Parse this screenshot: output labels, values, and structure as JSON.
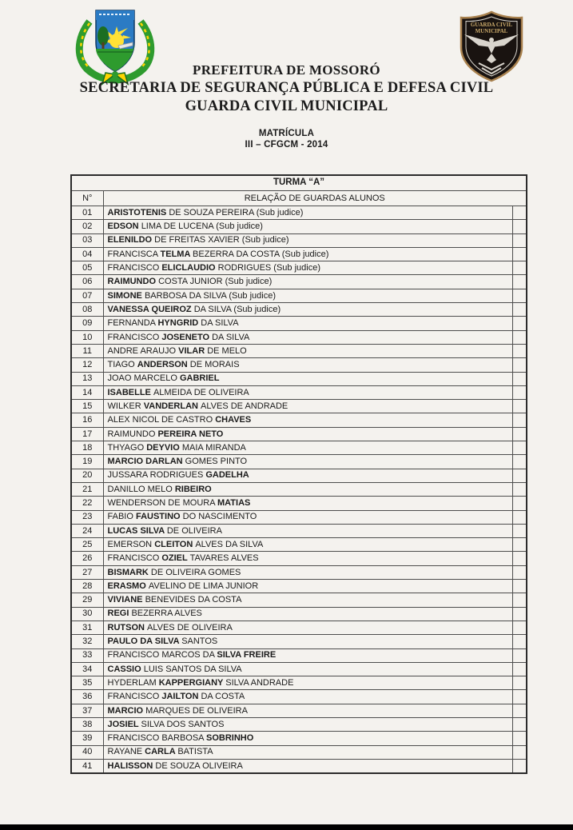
{
  "header": {
    "title_lines": [
      "PREFEITURA DE MOSSORÓ",
      "SECRETARIA DE SEGURANÇA PÚBLICA E DEFESA CIVIL",
      "GUARDA CIVIL MUNICIPAL"
    ],
    "subtitle_lines": [
      "MATRÍCULA",
      "III – CFGCM - 2014"
    ],
    "left_logo": "mossoro-coat-of-arms",
    "right_logo": "guarda-civil-municipal-badge",
    "right_logo_text": [
      "GUARDA  CIVIL",
      "MUNICIPAL"
    ]
  },
  "table": {
    "title": "TURMA “A”",
    "col_number_header": "N°",
    "col_names_header": "RELAÇÃO DE GUARDAS ALUNOS",
    "rows": [
      {
        "num": "01",
        "segments": [
          {
            "text": "ARISTOTENIS ",
            "bold": true
          },
          {
            "text": "DE SOUZA PEREIRA (Sub judice)",
            "bold": false
          }
        ]
      },
      {
        "num": "02",
        "segments": [
          {
            "text": "EDSON ",
            "bold": true
          },
          {
            "text": "LIMA DE LUCENA (Sub judice)",
            "bold": false
          }
        ]
      },
      {
        "num": "03",
        "segments": [
          {
            "text": "ELENILDO ",
            "bold": true
          },
          {
            "text": "DE FREITAS XAVIER (Sub judice)",
            "bold": false
          }
        ]
      },
      {
        "num": "04",
        "segments": [
          {
            "text": "FRANCISCA ",
            "bold": false
          },
          {
            "text": "TELMA ",
            "bold": true
          },
          {
            "text": "BEZERRA DA COSTA (Sub judice)",
            "bold": false
          }
        ]
      },
      {
        "num": "05",
        "segments": [
          {
            "text": "FRANCISCO ",
            "bold": false
          },
          {
            "text": "ELICLAUDIO ",
            "bold": true
          },
          {
            "text": "RODRIGUES (Sub judice)",
            "bold": false
          }
        ]
      },
      {
        "num": "06",
        "segments": [
          {
            "text": "RAIMUNDO ",
            "bold": true
          },
          {
            "text": "COSTA JUNIOR (Sub judice)",
            "bold": false
          }
        ]
      },
      {
        "num": "07",
        "segments": [
          {
            "text": "SIMONE ",
            "bold": true
          },
          {
            "text": "BARBOSA DA SILVA (Sub judice)",
            "bold": false
          }
        ]
      },
      {
        "num": "08",
        "segments": [
          {
            "text": "VANESSA QUEIROZ ",
            "bold": true
          },
          {
            "text": "DA SILVA (Sub judice)",
            "bold": false
          }
        ]
      },
      {
        "num": "09",
        "segments": [
          {
            "text": "FERNANDA ",
            "bold": false
          },
          {
            "text": "HYNGRID ",
            "bold": true
          },
          {
            "text": "DA SILVA",
            "bold": false
          }
        ]
      },
      {
        "num": "10",
        "segments": [
          {
            "text": "FRANCISCO ",
            "bold": false
          },
          {
            "text": "JOSENETO ",
            "bold": true
          },
          {
            "text": "DA SILVA",
            "bold": false
          }
        ]
      },
      {
        "num": "11",
        "segments": [
          {
            "text": "ANDRE ARAUJO ",
            "bold": false
          },
          {
            "text": "VILAR ",
            "bold": true
          },
          {
            "text": "DE MELO",
            "bold": false
          }
        ]
      },
      {
        "num": "12",
        "segments": [
          {
            "text": "TIAGO ",
            "bold": false
          },
          {
            "text": "ANDERSON ",
            "bold": true
          },
          {
            "text": "DE MORAIS",
            "bold": false
          }
        ]
      },
      {
        "num": "13",
        "segments": [
          {
            "text": "JOAO MARCELO ",
            "bold": false
          },
          {
            "text": "GABRIEL",
            "bold": true
          }
        ]
      },
      {
        "num": "14",
        "segments": [
          {
            "text": "ISABELLE ",
            "bold": true
          },
          {
            "text": "ALMEIDA DE OLIVEIRA",
            "bold": false
          }
        ]
      },
      {
        "num": "15",
        "segments": [
          {
            "text": "WILKER ",
            "bold": false
          },
          {
            "text": "VANDERLAN ",
            "bold": true
          },
          {
            "text": "ALVES DE ANDRADE",
            "bold": false
          }
        ]
      },
      {
        "num": "16",
        "segments": [
          {
            "text": "ALEX NICOL DE CASTRO ",
            "bold": false
          },
          {
            "text": "CHAVES",
            "bold": true
          }
        ]
      },
      {
        "num": "17",
        "segments": [
          {
            "text": "RAIMUNDO ",
            "bold": false
          },
          {
            "text": "PEREIRA NETO",
            "bold": true
          }
        ]
      },
      {
        "num": "18",
        "segments": [
          {
            "text": "THYAGO ",
            "bold": false
          },
          {
            "text": "DEYVIO ",
            "bold": true
          },
          {
            "text": "MAIA MIRANDA",
            "bold": false
          }
        ]
      },
      {
        "num": "19",
        "segments": [
          {
            "text": "MARCIO DARLAN ",
            "bold": true
          },
          {
            "text": "GOMES PINTO",
            "bold": false
          }
        ]
      },
      {
        "num": "20",
        "segments": [
          {
            "text": "JUSSARA RODRIGUES ",
            "bold": false
          },
          {
            "text": "GADELHA",
            "bold": true
          }
        ]
      },
      {
        "num": "21",
        "segments": [
          {
            "text": "DANILLO MELO ",
            "bold": false
          },
          {
            "text": "RIBEIRO",
            "bold": true
          }
        ]
      },
      {
        "num": "22",
        "segments": [
          {
            "text": "WENDERSON DE MOURA ",
            "bold": false
          },
          {
            "text": "MATIAS",
            "bold": true
          }
        ]
      },
      {
        "num": "23",
        "segments": [
          {
            "text": "FABIO ",
            "bold": false
          },
          {
            "text": "FAUSTINO ",
            "bold": true
          },
          {
            "text": "DO NASCIMENTO",
            "bold": false
          }
        ]
      },
      {
        "num": "24",
        "segments": [
          {
            "text": "LUCAS SILVA ",
            "bold": true
          },
          {
            "text": "DE OLIVEIRA",
            "bold": false
          }
        ]
      },
      {
        "num": "25",
        "segments": [
          {
            "text": "EMERSON ",
            "bold": false
          },
          {
            "text": "CLEITON ",
            "bold": true
          },
          {
            "text": "ALVES DA SILVA",
            "bold": false
          }
        ]
      },
      {
        "num": "26",
        "segments": [
          {
            "text": "FRANCISCO ",
            "bold": false
          },
          {
            "text": "OZIEL ",
            "bold": true
          },
          {
            "text": "TAVARES ALVES",
            "bold": false
          }
        ]
      },
      {
        "num": "27",
        "segments": [
          {
            "text": "BISMARK ",
            "bold": true
          },
          {
            "text": "DE OLIVEIRA GOMES",
            "bold": false
          }
        ]
      },
      {
        "num": "28",
        "segments": [
          {
            "text": "ERASMO ",
            "bold": true
          },
          {
            "text": "AVELINO DE LIMA JUNIOR",
            "bold": false
          }
        ]
      },
      {
        "num": "29",
        "segments": [
          {
            "text": "VIVIANE ",
            "bold": true
          },
          {
            "text": "BENEVIDES DA COSTA",
            "bold": false
          }
        ]
      },
      {
        "num": "30",
        "segments": [
          {
            "text": "REGI ",
            "bold": true
          },
          {
            "text": "BEZERRA ALVES",
            "bold": false
          }
        ]
      },
      {
        "num": "31",
        "segments": [
          {
            "text": "RUTSON ",
            "bold": true
          },
          {
            "text": "ALVES DE OLIVEIRA",
            "bold": false
          }
        ]
      },
      {
        "num": "32",
        "segments": [
          {
            "text": "PAULO DA SILVA ",
            "bold": true
          },
          {
            "text": "SANTOS",
            "bold": false
          }
        ]
      },
      {
        "num": "33",
        "segments": [
          {
            "text": "FRANCISCO MARCOS DA ",
            "bold": false
          },
          {
            "text": "SILVA FREIRE",
            "bold": true
          }
        ]
      },
      {
        "num": "34",
        "segments": [
          {
            "text": "CASSIO ",
            "bold": true
          },
          {
            "text": "LUIS SANTOS DA SILVA",
            "bold": false
          }
        ]
      },
      {
        "num": "35",
        "segments": [
          {
            "text": "HYDERLAM ",
            "bold": false
          },
          {
            "text": "KAPPERGIANY ",
            "bold": true
          },
          {
            "text": "SILVA ANDRADE",
            "bold": false
          }
        ]
      },
      {
        "num": "36",
        "segments": [
          {
            "text": "FRANCISCO ",
            "bold": false
          },
          {
            "text": "JAILTON ",
            "bold": true
          },
          {
            "text": "DA COSTA",
            "bold": false
          }
        ]
      },
      {
        "num": "37",
        "segments": [
          {
            "text": "MARCIO ",
            "bold": true
          },
          {
            "text": "MARQUES DE OLIVEIRA",
            "bold": false
          }
        ]
      },
      {
        "num": "38",
        "segments": [
          {
            "text": "JOSIEL ",
            "bold": true
          },
          {
            "text": "SILVA DOS SANTOS",
            "bold": false
          }
        ]
      },
      {
        "num": "39",
        "segments": [
          {
            "text": "FRANCISCO BARBOSA ",
            "bold": false
          },
          {
            "text": "SOBRINHO",
            "bold": true
          }
        ]
      },
      {
        "num": "40",
        "segments": [
          {
            "text": "RAYANE ",
            "bold": false
          },
          {
            "text": "CARLA ",
            "bold": true
          },
          {
            "text": "BATISTA",
            "bold": false
          }
        ]
      },
      {
        "num": "41",
        "segments": [
          {
            "text": "HALISSON ",
            "bold": true
          },
          {
            "text": "DE SOUZA OLIVEIRA",
            "bold": false
          }
        ]
      }
    ]
  },
  "colors": {
    "page_bg": "#f4f2ee",
    "text": "#1b1b1b",
    "table_border_inner": "#4d4d4d",
    "table_border_outer": "#2b2b2b",
    "bottom_bar": "#000000",
    "crest_green": "#2e9b2e",
    "crest_dark_green": "#1c6e22",
    "crest_yellow": "#ffd400",
    "crest_blue": "#2b7bc4",
    "badge_dark": "#191310",
    "badge_gold": "#a9824f",
    "badge_eagle": "#d9d5cd"
  }
}
